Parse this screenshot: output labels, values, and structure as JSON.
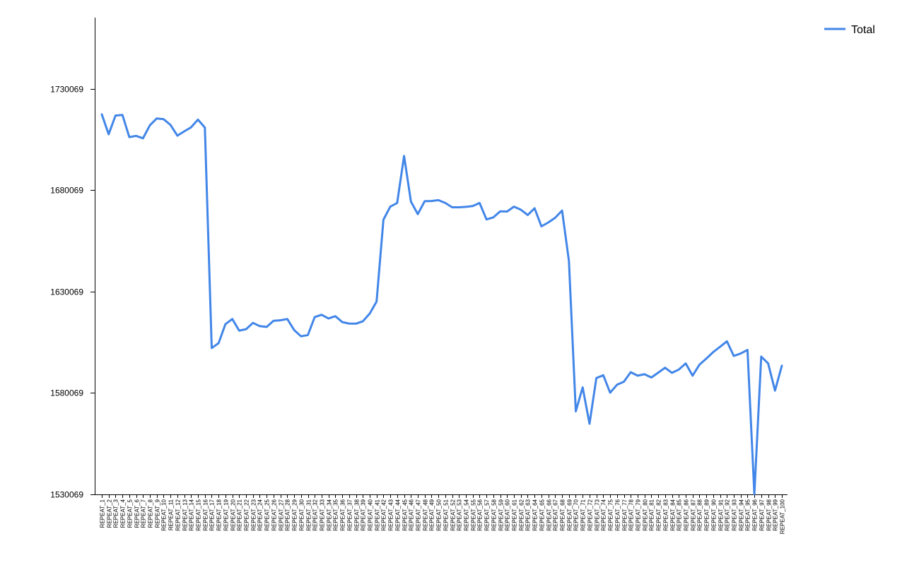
{
  "chart_data": {
    "type": "line",
    "title": "",
    "xlabel": "",
    "ylabel": "",
    "categories": [
      "REPEAT_1",
      "REPEAT_2",
      "REPEAT_3",
      "REPEAT_4",
      "REPEAT_5",
      "REPEAT_6",
      "REPEAT_7",
      "REPEAT_8",
      "REPEAT_9",
      "REPEAT_10",
      "REPEAT_11",
      "REPEAT_12",
      "REPEAT_13",
      "REPEAT_14",
      "REPEAT_15",
      "REPEAT_16",
      "REPEAT_17",
      "REPEAT_18",
      "REPEAT_19",
      "REPEAT_20",
      "REPEAT_21",
      "REPEAT_22",
      "REPEAT_23",
      "REPEAT_24",
      "REPEAT_25",
      "REPEAT_26",
      "REPEAT_27",
      "REPEAT_28",
      "REPEAT_29",
      "REPEAT_30",
      "REPEAT_31",
      "REPEAT_32",
      "REPEAT_33",
      "REPEAT_34",
      "REPEAT_35",
      "REPEAT_36",
      "REPEAT_37",
      "REPEAT_38",
      "REPEAT_39",
      "REPEAT_40",
      "REPEAT_41",
      "REPEAT_42",
      "REPEAT_43",
      "REPEAT_44",
      "REPEAT_45",
      "REPEAT_46",
      "REPEAT_47",
      "REPEAT_48",
      "REPEAT_49",
      "REPEAT_50",
      "REPEAT_51",
      "REPEAT_52",
      "REPEAT_53",
      "REPEAT_54",
      "REPEAT_55",
      "REPEAT_56",
      "REPEAT_57",
      "REPEAT_58",
      "REPEAT_59",
      "REPEAT_60",
      "REPEAT_61",
      "REPEAT_62",
      "REPEAT_63",
      "REPEAT_64",
      "REPEAT_65",
      "REPEAT_66",
      "REPEAT_67",
      "REPEAT_68",
      "REPEAT_69",
      "REPEAT_70",
      "REPEAT_71",
      "REPEAT_72",
      "REPEAT_73",
      "REPEAT_74",
      "REPEAT_75",
      "REPEAT_76",
      "REPEAT_77",
      "REPEAT_78",
      "REPEAT_79",
      "REPEAT_80",
      "REPEAT_81",
      "REPEAT_82",
      "REPEAT_83",
      "REPEAT_84",
      "REPEAT_85",
      "REPEAT_86",
      "REPEAT_87",
      "REPEAT_88",
      "REPEAT_89",
      "REPEAT_90",
      "REPEAT_91",
      "REPEAT_92",
      "REPEAT_93",
      "REPEAT_94",
      "REPEAT_95",
      "REPEAT_96",
      "REPEAT_97",
      "REPEAT_98",
      "REPEAT_99",
      "REPEAT_100"
    ],
    "series": [
      {
        "name": "Total",
        "color": "#4286e8",
        "values": [
          1717400,
          1707600,
          1716800,
          1717100,
          1706200,
          1706800,
          1705600,
          1712000,
          1715400,
          1715000,
          1712200,
          1706900,
          1709000,
          1711000,
          1714800,
          1710900,
          1602200,
          1604600,
          1614000,
          1616500,
          1610800,
          1611500,
          1614600,
          1613000,
          1612600,
          1615600,
          1615900,
          1616500,
          1611100,
          1608000,
          1608600,
          1617500,
          1618600,
          1616800,
          1617900,
          1615000,
          1614300,
          1614200,
          1615400,
          1619200,
          1625100,
          1665500,
          1671900,
          1673700,
          1696900,
          1674400,
          1668200,
          1674600,
          1674700,
          1675100,
          1673700,
          1671600,
          1671600,
          1671800,
          1672200,
          1673700,
          1665600,
          1666600,
          1669600,
          1669500,
          1671900,
          1670400,
          1667800,
          1671100,
          1662200,
          1664100,
          1666400,
          1670000,
          1645100,
          1571000,
          1582800,
          1564900,
          1587400,
          1588800,
          1580200,
          1584100,
          1585600,
          1590300,
          1588600,
          1589300,
          1587700,
          1590100,
          1592500,
          1590000,
          1591600,
          1594600,
          1588600,
          1594000,
          1597000,
          1600200,
          1602800,
          1605500,
          1598300,
          1599500,
          1601300,
          1530200,
          1598000,
          1594600,
          1581200,
          1593500
        ]
      }
    ],
    "yticks": [
      "1530069",
      "1580069",
      "1630069",
      "1680069",
      "1730069"
    ],
    "ylim": [
      1530069,
      1765069
    ],
    "grid": false,
    "legend": {
      "position": "top-right",
      "label": "Total"
    }
  }
}
